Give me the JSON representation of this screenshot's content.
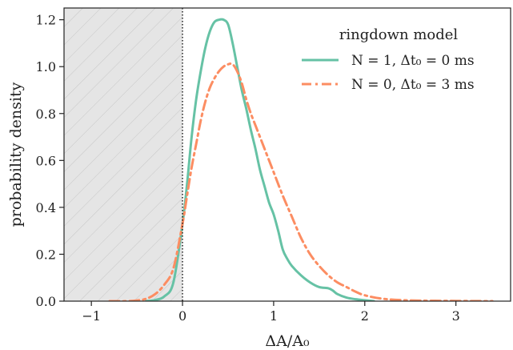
{
  "chart_data": {
    "type": "line",
    "xlabel": "ΔA/A₀",
    "ylabel": "probability density",
    "xlim": [
      -1.3,
      3.6
    ],
    "ylim": [
      0.0,
      1.25
    ],
    "x_ticks": [
      -1,
      0,
      1,
      2,
      3
    ],
    "x_tick_labels": [
      "−1",
      "0",
      "1",
      "2",
      "3"
    ],
    "y_ticks": [
      0.0,
      0.2,
      0.4,
      0.6,
      0.8,
      1.0,
      1.2
    ],
    "y_tick_labels": [
      "0.0",
      "0.2",
      "0.4",
      "0.6",
      "0.8",
      "1.0",
      "1.2"
    ],
    "grid": false,
    "shaded_region": {
      "x_from": -1.3,
      "x_to": 0.0,
      "fill": "#e5e5e5",
      "hatch": "diagonal"
    },
    "vertical_line": {
      "x": 0.0,
      "style": "dotted",
      "color": "#000000"
    },
    "legend": {
      "title": "ringdown model",
      "placement": "top-right",
      "entries": [
        "N = 1, Δt₀ = 0 ms",
        "N = 0, Δt₀ = 3 ms"
      ]
    },
    "series": [
      {
        "name": "N = 1, Δt₀ = 0 ms",
        "color": "#66c2a5",
        "style": "solid",
        "x": [
          -0.4,
          -0.3,
          -0.2,
          -0.1,
          0.0,
          0.05,
          0.1,
          0.15,
          0.2,
          0.25,
          0.3,
          0.35,
          0.4,
          0.45,
          0.5,
          0.55,
          0.6,
          0.65,
          0.7,
          0.75,
          0.8,
          0.85,
          0.9,
          0.95,
          1.0,
          1.05,
          1.1,
          1.15,
          1.2,
          1.3,
          1.4,
          1.5,
          1.6,
          1.65,
          1.7,
          1.8,
          1.9,
          2.0,
          2.1
        ],
        "y": [
          0.0,
          0.005,
          0.02,
          0.08,
          0.33,
          0.5,
          0.7,
          0.86,
          0.98,
          1.08,
          1.15,
          1.19,
          1.2,
          1.2,
          1.18,
          1.1,
          1.0,
          0.9,
          0.82,
          0.73,
          0.65,
          0.56,
          0.49,
          0.42,
          0.37,
          0.3,
          0.22,
          0.18,
          0.15,
          0.11,
          0.08,
          0.06,
          0.055,
          0.045,
          0.03,
          0.015,
          0.008,
          0.004,
          0.0
        ]
      },
      {
        "name": "N = 0, Δt₀ = 3 ms",
        "color": "#fc8d62",
        "style": "dashdot",
        "x": [
          -0.8,
          -0.6,
          -0.5,
          -0.4,
          -0.3,
          -0.2,
          -0.1,
          0.0,
          0.05,
          0.1,
          0.15,
          0.2,
          0.25,
          0.3,
          0.35,
          0.4,
          0.45,
          0.5,
          0.55,
          0.6,
          0.65,
          0.7,
          0.75,
          0.8,
          0.9,
          1.0,
          1.1,
          1.2,
          1.3,
          1.4,
          1.5,
          1.6,
          1.7,
          1.8,
          1.9,
          2.0,
          2.2,
          2.5,
          3.0,
          3.4
        ],
        "y": [
          0.0,
          0.0,
          0.003,
          0.01,
          0.03,
          0.07,
          0.14,
          0.33,
          0.45,
          0.57,
          0.67,
          0.77,
          0.85,
          0.91,
          0.95,
          0.98,
          1.0,
          1.01,
          1.01,
          0.98,
          0.93,
          0.86,
          0.8,
          0.75,
          0.65,
          0.55,
          0.45,
          0.36,
          0.27,
          0.2,
          0.15,
          0.11,
          0.08,
          0.06,
          0.04,
          0.025,
          0.01,
          0.003,
          0.001,
          0.0
        ]
      }
    ]
  }
}
